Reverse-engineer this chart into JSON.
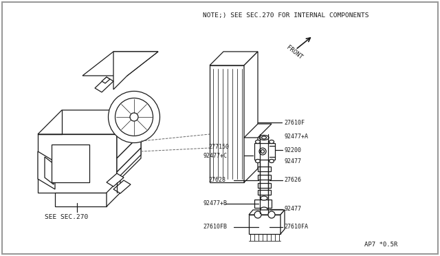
{
  "bg_color": "#ffffff",
  "border_color": "#cccccc",
  "line_color": "#1a1a1a",
  "note_text": "NOTE;) SEE SEC.270 FOR INTERNAL COMPONENTS",
  "front_label": "FRONT",
  "see_sec_label": "SEE SEC.270",
  "part_code": "AP7 *0.5R",
  "lw": 0.9,
  "fs_label": 6.0,
  "fs_note": 6.5
}
